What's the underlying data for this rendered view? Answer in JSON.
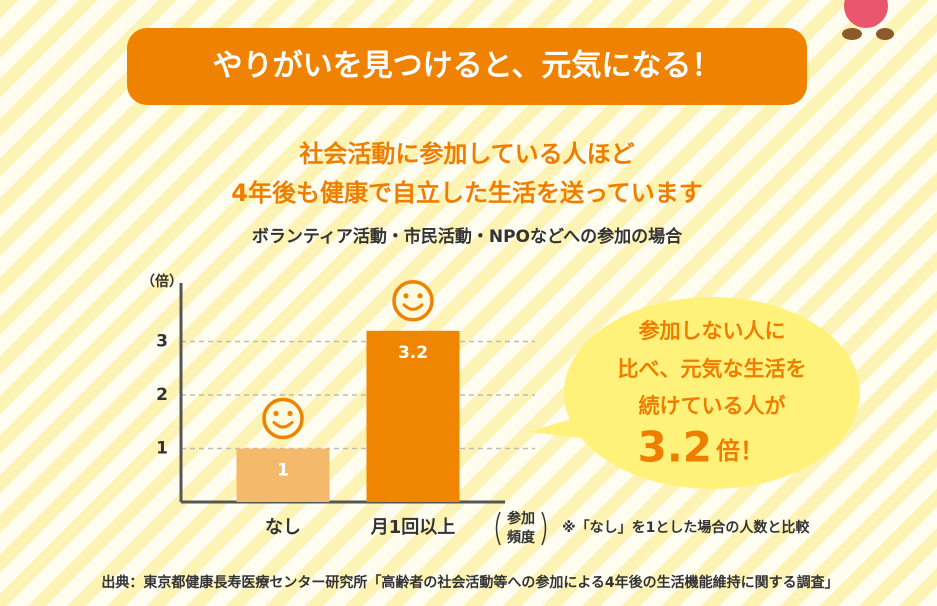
{
  "banner": "やりがいを見つけると、元気になる！",
  "chart_data": {
    "type": "bar",
    "title_lines": [
      "社会活動に参加している人ほど",
      "4年後も健康で自立した生活を送っています"
    ],
    "subtitle": "ボランティア活動・市民活動・NPOなどへの参加の場合",
    "y_unit": "（倍）",
    "x_label_lines": [
      "参加",
      "頻度"
    ],
    "footnote": "※「なし」を1とした場合の人数と比較",
    "categories": [
      "なし",
      "月1回以上"
    ],
    "values": [
      1,
      3.2
    ],
    "colors": [
      "#f5b96c",
      "#ef8500"
    ],
    "ylim": [
      0,
      4
    ],
    "yticks": [
      1,
      2,
      3
    ],
    "grid": true
  },
  "bubble": {
    "lines": [
      "参加しない人に",
      "比べ、元気な生活を",
      "続けている人が"
    ],
    "big": "3.2",
    "unit": "倍！"
  },
  "source": "出典：東京都健康長寿医療センター研究所「高齢者の社会活動等への参加による4年後の生活機能維持に関する調査」"
}
